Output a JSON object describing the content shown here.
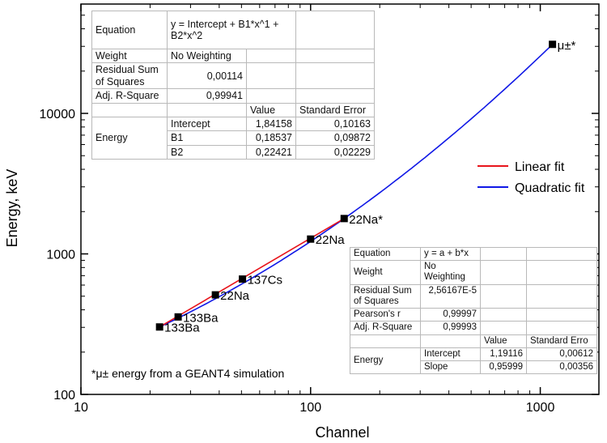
{
  "chart_data": {
    "type": "scatter",
    "xlabel": "Channel",
    "ylabel": "Energy, keV",
    "x_scale": "log",
    "y_scale": "log",
    "xlim": [
      10,
      1800
    ],
    "ylim": [
      100,
      60000
    ],
    "x_ticks": [
      {
        "value": 10,
        "label": "10"
      },
      {
        "value": 100,
        "label": "100"
      },
      {
        "value": 1000,
        "label": "1000"
      }
    ],
    "y_ticks": [
      {
        "value": 100,
        "label": "100"
      },
      {
        "value": 1000,
        "label": "1000"
      },
      {
        "value": 10000,
        "label": "10000"
      }
    ],
    "grid": false,
    "legend_position": "right",
    "points": [
      {
        "label": "133Ba",
        "x": 22,
        "y": 302
      },
      {
        "label": "133Ba",
        "x": 26.5,
        "y": 356
      },
      {
        "label": "22Na",
        "x": 38.5,
        "y": 511
      },
      {
        "label": "137Cs",
        "x": 50.5,
        "y": 662
      },
      {
        "label": "22Na",
        "x": 100,
        "y": 1275
      },
      {
        "label": "22Na*",
        "x": 140,
        "y": 1785
      },
      {
        "label": "μ±*",
        "x": 1130,
        "y": 31000
      }
    ],
    "series": [
      {
        "name": "Linear fit",
        "color": "#e8141b",
        "x": [
          22,
          140
        ],
        "y": [
          302,
          1785
        ]
      },
      {
        "name": "Quadratic fit",
        "color": "#1018e6",
        "x": [
          22,
          140,
          400,
          700,
          1130
        ],
        "y": [
          302,
          1785,
          6500,
          14200,
          31000
        ]
      }
    ],
    "annotations": [
      "*μ± energy from a GEANT4 simulation"
    ]
  },
  "footnote": "*μ± energy from a GEANT4 simulation",
  "quadratic_stats": {
    "equation_label": "Equation",
    "equation": "y = Intercept + B1*x^1 + B2*x^2",
    "weight_label": "Weight",
    "weight": "No Weighting",
    "rss_label": "Residual Sum of Squares",
    "rss": "0,00114",
    "adj_r2_label": "Adj. R-Square",
    "adj_r2": "0,99941",
    "value_header": "Value",
    "error_header": "Standard Error",
    "group_label": "Energy",
    "rows": [
      {
        "name": "Intercept",
        "value": "1,84158",
        "error": "0,10163"
      },
      {
        "name": "B1",
        "value": "0,18537",
        "error": "0,09872"
      },
      {
        "name": "B2",
        "value": "0,22421",
        "error": "0,02229"
      }
    ]
  },
  "linear_stats": {
    "equation_label": "Equation",
    "equation": "y = a + b*x",
    "weight_label": "Weight",
    "weight": "No Weighting",
    "rss_label": "Residual Sum of Squares",
    "rss": "2,56167E-5",
    "pearson_label": "Pearson's r",
    "pearson": "0,99997",
    "adj_r2_label": "Adj. R-Square",
    "adj_r2": "0,99993",
    "value_header": "Value",
    "error_header": "Standard Erro",
    "group_label": "Energy",
    "rows": [
      {
        "name": "Intercept",
        "value": "1,19116",
        "error": "0,00612"
      },
      {
        "name": "Slope",
        "value": "0,95999",
        "error": "0,00356"
      }
    ]
  }
}
